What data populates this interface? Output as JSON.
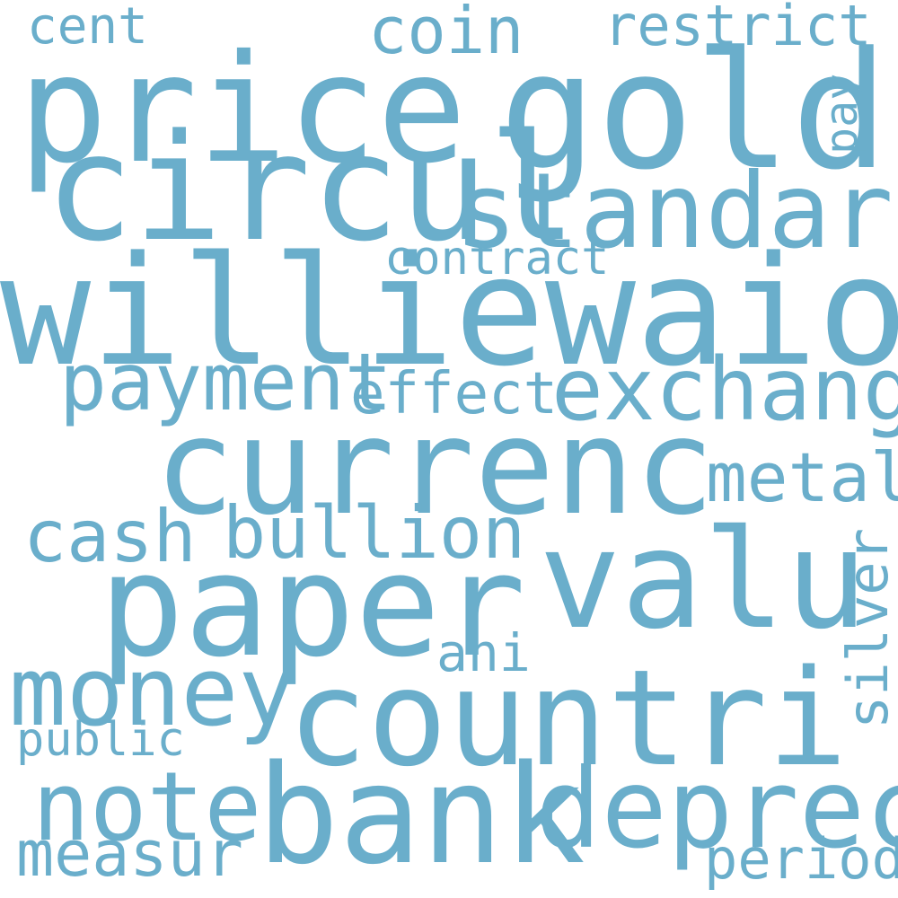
{
  "word_color": "#6aaecb",
  "background": "#ffffff",
  "words": {
    "williewaiola": "williewaiola",
    "currenc": "currenc",
    "price": "price",
    "gold": "gold",
    "circul": "circul",
    "paper": "paper",
    "valu": "valu",
    "countri": "countri",
    "bank": "bank",
    "standard": "standard",
    "depreci": "depreci",
    "note": "note",
    "money": "money",
    "exchang": "exchang",
    "payment": "payment",
    "bullion": "bullion",
    "cash": "cash",
    "metal": "metal",
    "coin": "coin",
    "restrict": "restrict",
    "silver": "silver",
    "measur": "measur",
    "period": "period",
    "cent": "cent",
    "contract": "contract",
    "effect": "effect",
    "ani": "ani",
    "public": "public",
    "pay": "pay"
  }
}
